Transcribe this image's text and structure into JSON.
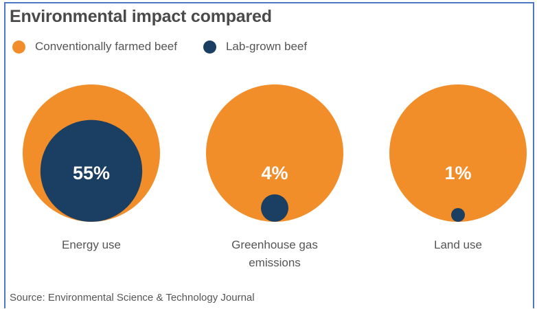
{
  "title": "Environmental impact compared",
  "colors": {
    "conventional": "#f28e2a",
    "lab_grown": "#1b3f63"
  },
  "chart_data": {
    "type": "bubble",
    "title": "Environmental impact compared",
    "legend": [
      {
        "name": "Conventionally farmed beef",
        "color": "#f28e2a"
      },
      {
        "name": "Lab-grown beef",
        "color": "#1b3f63"
      }
    ],
    "legend_position": "top-left",
    "categories": [
      "Energy use",
      "Greenhouse gas emissions",
      "Land use"
    ],
    "series": [
      {
        "name": "Conventionally farmed beef",
        "values": [
          100,
          100,
          100
        ]
      },
      {
        "name": "Lab-grown beef",
        "values": [
          55,
          4,
          1
        ]
      }
    ],
    "data_labels": [
      "55%",
      "4%",
      "1%"
    ],
    "category_labels": [
      [
        "Energy use"
      ],
      [
        "Greenhouse gas",
        "emissions"
      ],
      [
        "Land use"
      ]
    ]
  },
  "source": "Source: Environmental Science & Technology Journal"
}
